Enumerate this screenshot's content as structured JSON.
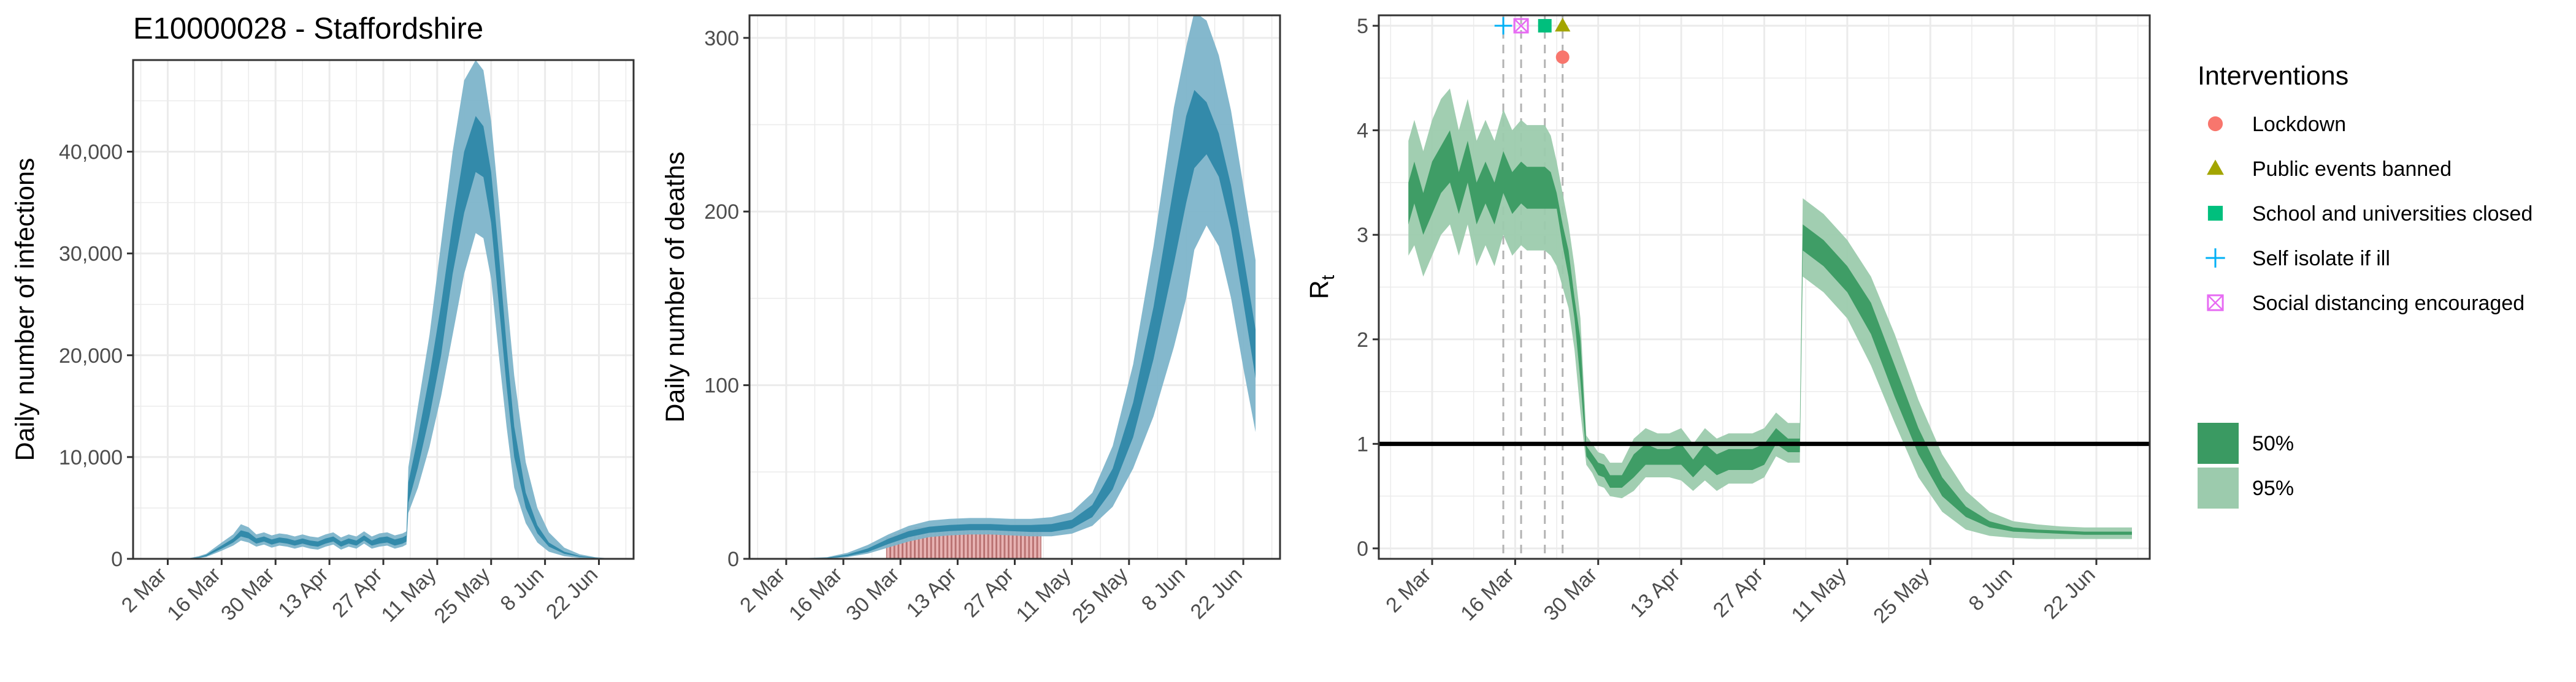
{
  "figure_title": "E10000028 - Staffordshire",
  "colors": {
    "blue_inner": "#2e87a8",
    "blue_outer": "#7db4ca",
    "bar_fill": "#e8b3b3",
    "bar_stroke": "#b87070",
    "green_inner": "#3a9a62",
    "green_outer": "#9ccbad",
    "grid": "#ebebeb",
    "lockdown": "#f8766d",
    "public_events": "#a3a500",
    "schools": "#00bf7d",
    "self_isolate": "#00b0f6",
    "social_distancing": "#e76bf3"
  },
  "date_ticks": [
    "2 Mar",
    "16 Mar",
    "30 Mar",
    "13 Apr",
    "27 Apr",
    "11 May",
    "25 May",
    "8 Jun",
    "22 Jun"
  ],
  "chart_data": [
    {
      "type": "area",
      "title": "E10000028 - Staffordshire",
      "ylabel": "Daily number of infections",
      "xlabel": "",
      "grid": true,
      "x_ticks": [
        "2 Mar",
        "16 Mar",
        "30 Mar",
        "13 Apr",
        "27 Apr",
        "11 May",
        "25 May",
        "8 Jun",
        "22 Jun"
      ],
      "y_ticks": [
        "0",
        "10,000",
        "20,000",
        "30,000",
        "40,000"
      ],
      "ylim": [
        0,
        49000
      ],
      "xlim_day": [
        -9,
        121
      ],
      "series": [
        {
          "name": "50%",
          "day": [
            0,
            5,
            8,
            10,
            14,
            17,
            19,
            21,
            23,
            25,
            27,
            29,
            31,
            33,
            35,
            37,
            39,
            41,
            43,
            45,
            47,
            49,
            51,
            53,
            55,
            57,
            59,
            61,
            62,
            62.5,
            65,
            68,
            71,
            74,
            77,
            80,
            82,
            84,
            86,
            88,
            90,
            93,
            96,
            99,
            103,
            107,
            111,
            114
          ],
          "lower": [
            0,
            10,
            100,
            250,
            1000,
            1600,
            2200,
            2000,
            1500,
            1700,
            1400,
            1600,
            1500,
            1300,
            1500,
            1300,
            1200,
            1500,
            1700,
            1200,
            1500,
            1300,
            1800,
            1300,
            1500,
            1600,
            1300,
            1500,
            1700,
            5500,
            9000,
            14000,
            20000,
            28000,
            34000,
            38000,
            37500,
            33000,
            25000,
            17000,
            10000,
            5000,
            2500,
            1200,
            500,
            200,
            70,
            30
          ],
          "upper": [
            0,
            20,
            170,
            400,
            1300,
            2000,
            2800,
            2600,
            2000,
            2200,
            1900,
            2100,
            2000,
            1800,
            2000,
            1800,
            1700,
            2000,
            2200,
            1700,
            2000,
            1800,
            2300,
            1800,
            2100,
            2200,
            1900,
            2100,
            2300,
            7500,
            12000,
            18000,
            25000,
            33000,
            40000,
            43500,
            42500,
            38000,
            30000,
            21000,
            13000,
            6500,
            3300,
            1600,
            700,
            280,
            100,
            45
          ]
        },
        {
          "name": "95%",
          "day": [
            0,
            5,
            8,
            10,
            14,
            17,
            19,
            21,
            23,
            25,
            27,
            29,
            31,
            33,
            35,
            37,
            39,
            41,
            43,
            45,
            47,
            49,
            51,
            53,
            55,
            57,
            59,
            61,
            62,
            62.5,
            65,
            68,
            71,
            74,
            77,
            80,
            82,
            84,
            86,
            88,
            90,
            93,
            96,
            99,
            103,
            107,
            111,
            114
          ],
          "lower": [
            0,
            5,
            60,
            180,
            800,
            1300,
            1800,
            1600,
            1200,
            1400,
            1100,
            1300,
            1200,
            1000,
            1200,
            1000,
            900,
            1200,
            1400,
            900,
            1200,
            1000,
            1500,
            1000,
            1200,
            1300,
            1000,
            1200,
            1400,
            4500,
            7000,
            11000,
            16000,
            22000,
            28000,
            32000,
            31500,
            27500,
            20000,
            13000,
            7000,
            3500,
            1600,
            700,
            250,
            90,
            30,
            12
          ],
          "upper": [
            0,
            30,
            250,
            500,
            1600,
            2400,
            3400,
            3100,
            2400,
            2600,
            2300,
            2500,
            2400,
            2200,
            2400,
            2200,
            2100,
            2400,
            2600,
            2100,
            2400,
            2200,
            2700,
            2200,
            2500,
            2600,
            2300,
            2500,
            2700,
            9000,
            15000,
            22000,
            31000,
            40000,
            47000,
            49000,
            48000,
            43000,
            35000,
            26000,
            18000,
            9500,
            5000,
            2600,
            1100,
            450,
            170,
            80
          ]
        }
      ]
    },
    {
      "type": "area",
      "title": "",
      "ylabel": "Daily number of deaths",
      "xlabel": "",
      "grid": true,
      "x_ticks": [
        "2 Mar",
        "16 Mar",
        "30 Mar",
        "13 Apr",
        "27 Apr",
        "11 May",
        "25 May",
        "8 Jun",
        "22 Jun"
      ],
      "y_ticks": [
        "0",
        "100",
        "200",
        "300"
      ],
      "ylim": [
        0,
        313
      ],
      "xlim_day": [
        -9,
        121
      ],
      "bars": {
        "name": "Reported deaths",
        "day_start": 25,
        "day_end": 62,
        "values": [
          12,
          13,
          14,
          15,
          16,
          17,
          17,
          18,
          18,
          18,
          18,
          18,
          18,
          18,
          18,
          18,
          18,
          18,
          18,
          18,
          18,
          18,
          18,
          18,
          18,
          18,
          18,
          18,
          18,
          18,
          18,
          18,
          18,
          18,
          18,
          18,
          18,
          18
        ]
      },
      "series": [
        {
          "name": "50%",
          "day": [
            0,
            10,
            15,
            20,
            25,
            30,
            35,
            40,
            45,
            50,
            55,
            60,
            65,
            70,
            75,
            80,
            85,
            90,
            95,
            98,
            100,
            103,
            106,
            109,
            112,
            115
          ],
          "lower": [
            0,
            0.3,
            1.5,
            4,
            8.5,
            12.5,
            15,
            16,
            16.5,
            16.5,
            16,
            15.5,
            15.5,
            17.5,
            24,
            40,
            70,
            115,
            170,
            205,
            225,
            233,
            220,
            190,
            148,
            104
          ],
          "upper": [
            0,
            0.6,
            2.5,
            6,
            11.5,
            16,
            18.5,
            19.5,
            20,
            20,
            19.5,
            19.5,
            20,
            22.5,
            31,
            52,
            90,
            145,
            215,
            255,
            270,
            263,
            245,
            215,
            175,
            132
          ]
        },
        {
          "name": "95%",
          "day": [
            0,
            10,
            15,
            20,
            25,
            30,
            35,
            40,
            45,
            50,
            55,
            60,
            65,
            70,
            75,
            80,
            85,
            90,
            95,
            98,
            100,
            103,
            106,
            109,
            112,
            115
          ],
          "lower": [
            0,
            0.1,
            1,
            3,
            6.5,
            10,
            12.5,
            13.5,
            14,
            14,
            13.5,
            13,
            13,
            14.5,
            19,
            30,
            52,
            82,
            122,
            150,
            178,
            192,
            180,
            150,
            110,
            73
          ],
          "upper": [
            0,
            1,
            3.5,
            8,
            14,
            19,
            22,
            23,
            23.5,
            23.5,
            23,
            23,
            24,
            27,
            38,
            65,
            112,
            180,
            260,
            295,
            315,
            310,
            290,
            258,
            215,
            172
          ]
        }
      ]
    },
    {
      "type": "area",
      "title": "",
      "ylabel": "R",
      "ylabel_sub": "t",
      "xlabel": "",
      "grid": true,
      "x_ticks": [
        "2 Mar",
        "16 Mar",
        "30 Mar",
        "13 Apr",
        "27 Apr",
        "11 May",
        "25 May",
        "8 Jun",
        "22 Jun"
      ],
      "y_ticks": [
        "0",
        "1",
        "2",
        "3",
        "4",
        "5"
      ],
      "ylim": [
        -0.1,
        5.1
      ],
      "xlim_day": [
        -9,
        121
      ],
      "reference_line": 1,
      "series": [
        {
          "name": "50%",
          "day": [
            -4,
            -3,
            -1.5,
            0,
            1.5,
            3,
            4.5,
            6,
            7.5,
            9,
            10.5,
            12,
            13.5,
            15,
            16,
            17,
            18,
            19,
            20,
            21,
            22,
            23,
            24,
            25,
            26,
            27,
            28,
            29,
            30,
            32,
            34,
            36,
            38,
            40,
            42,
            44,
            46,
            48,
            50,
            52,
            54,
            56,
            58,
            60,
            62,
            62.5,
            66,
            70,
            74,
            78,
            82,
            86,
            90,
            94,
            98,
            102,
            106,
            110,
            114,
            118
          ],
          "lower": [
            3.1,
            3.3,
            3.0,
            3.2,
            3.4,
            3.5,
            3.2,
            3.5,
            3.1,
            3.3,
            3.1,
            3.4,
            3.2,
            3.3,
            3.25,
            3.25,
            3.25,
            3.25,
            3.25,
            3.25,
            2.9,
            2.6,
            2.2,
            1.6,
            0.88,
            0.8,
            0.7,
            0.68,
            0.58,
            0.58,
            0.68,
            0.8,
            0.8,
            0.8,
            0.8,
            0.68,
            0.8,
            0.7,
            0.75,
            0.75,
            0.75,
            0.8,
            1.0,
            0.92,
            0.92,
            2.85,
            2.7,
            2.45,
            2.05,
            1.45,
            0.9,
            0.5,
            0.3,
            0.2,
            0.16,
            0.15,
            0.14,
            0.13,
            0.13,
            0.13
          ],
          "upper": [
            3.5,
            3.7,
            3.4,
            3.7,
            3.85,
            4.0,
            3.6,
            3.9,
            3.5,
            3.7,
            3.5,
            3.8,
            3.6,
            3.7,
            3.65,
            3.65,
            3.65,
            3.65,
            3.6,
            3.4,
            3.1,
            2.85,
            2.4,
            2.0,
            0.98,
            0.9,
            0.82,
            0.8,
            0.7,
            0.7,
            0.9,
            1.0,
            0.95,
            0.95,
            1.0,
            0.85,
            1.0,
            0.9,
            0.95,
            0.95,
            0.95,
            1.0,
            1.15,
            1.05,
            1.05,
            3.1,
            2.95,
            2.7,
            2.35,
            1.75,
            1.15,
            0.68,
            0.4,
            0.26,
            0.2,
            0.18,
            0.17,
            0.16,
            0.16,
            0.16
          ]
        },
        {
          "name": "95%",
          "day": [
            -4,
            -3,
            -1.5,
            0,
            1.5,
            3,
            4.5,
            6,
            7.5,
            9,
            10.5,
            12,
            13.5,
            15,
            16,
            17,
            18,
            19,
            20,
            21,
            22,
            23,
            24,
            25,
            26,
            27,
            28,
            29,
            30,
            32,
            34,
            36,
            38,
            40,
            42,
            44,
            46,
            48,
            50,
            52,
            54,
            56,
            58,
            60,
            62,
            62.5,
            66,
            70,
            74,
            78,
            82,
            86,
            90,
            94,
            98,
            102,
            106,
            110,
            114,
            118
          ],
          "lower": [
            2.8,
            2.9,
            2.6,
            2.8,
            3.0,
            3.1,
            2.8,
            3.1,
            2.7,
            2.9,
            2.7,
            3.0,
            2.8,
            2.9,
            2.85,
            2.85,
            2.85,
            2.85,
            2.8,
            2.7,
            2.5,
            2.3,
            1.9,
            1.3,
            0.8,
            0.72,
            0.6,
            0.58,
            0.5,
            0.48,
            0.55,
            0.68,
            0.68,
            0.68,
            0.65,
            0.55,
            0.65,
            0.55,
            0.62,
            0.62,
            0.62,
            0.68,
            0.88,
            0.82,
            0.82,
            2.6,
            2.45,
            2.2,
            1.75,
            1.2,
            0.68,
            0.35,
            0.18,
            0.12,
            0.1,
            0.09,
            0.09,
            0.09,
            0.09,
            0.09
          ],
          "upper": [
            3.9,
            4.1,
            3.8,
            4.1,
            4.3,
            4.4,
            4.0,
            4.3,
            3.9,
            4.1,
            3.9,
            4.2,
            4.0,
            4.1,
            4.05,
            4.05,
            4.05,
            4.05,
            3.95,
            3.7,
            3.4,
            3.1,
            2.7,
            2.2,
            1.08,
            1.0,
            0.92,
            0.9,
            0.82,
            0.82,
            1.05,
            1.15,
            1.1,
            1.1,
            1.15,
            1.0,
            1.15,
            1.05,
            1.1,
            1.1,
            1.1,
            1.15,
            1.3,
            1.2,
            1.2,
            3.35,
            3.2,
            2.95,
            2.6,
            2.05,
            1.42,
            0.9,
            0.55,
            0.35,
            0.26,
            0.23,
            0.21,
            0.2,
            0.2,
            0.2
          ]
        }
      ],
      "interventions": [
        {
          "name": "Lockdown",
          "day": 22,
          "y": 4.7,
          "shape": "circle"
        },
        {
          "name": "Public events banned",
          "day": 22,
          "y": 5.0,
          "shape": "triangle"
        },
        {
          "name": "School and universities closed",
          "day": 19,
          "y": 5.0,
          "shape": "square"
        },
        {
          "name": "Self isolate if ill",
          "day": 12,
          "y": 5.0,
          "shape": "plus"
        },
        {
          "name": "Social distancing encouraged",
          "day": 15,
          "y": 5.0,
          "shape": "boxcross"
        }
      ]
    }
  ],
  "legend": {
    "interventions_title": "Interventions",
    "interventions": [
      {
        "label": "Lockdown",
        "shape": "circle",
        "color": "#f8766d"
      },
      {
        "label": "Public events banned",
        "shape": "triangle",
        "color": "#a3a500"
      },
      {
        "label": "School and universities closed",
        "shape": "square",
        "color": "#00bf7d"
      },
      {
        "label": "Self isolate if ill",
        "shape": "plus",
        "color": "#00b0f6"
      },
      {
        "label": "Social distancing encouraged",
        "shape": "boxcross",
        "color": "#e76bf3"
      }
    ],
    "ci": [
      {
        "label": "50%"
      },
      {
        "label": "95%"
      }
    ]
  }
}
